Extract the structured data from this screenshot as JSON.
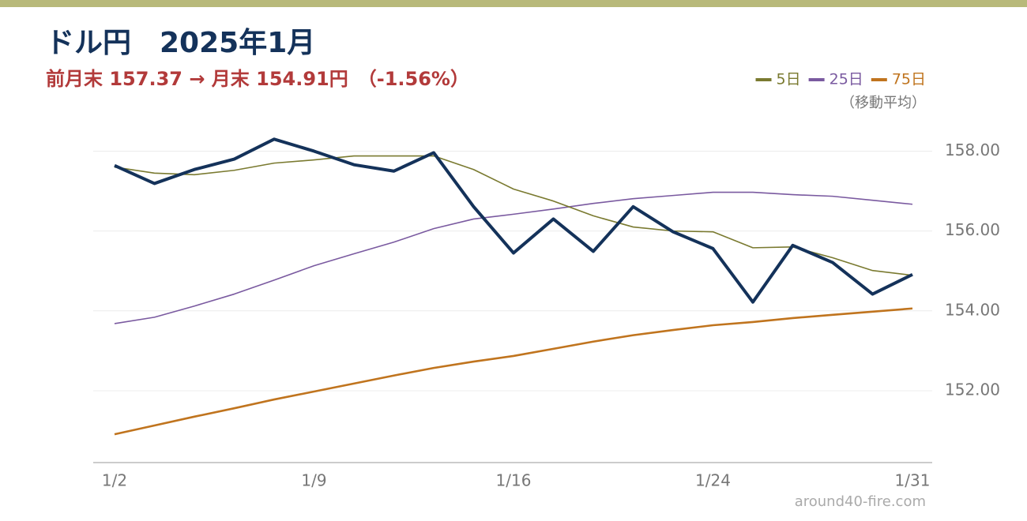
{
  "chart_data": {
    "type": "line",
    "title": "ドル円　2025年1月",
    "subtitle": "前月末 157.37 → 月末 154.91円　（-1.56%）",
    "legend_note": "（移動平均）",
    "source": "around40-fire.com",
    "categories": [
      "1/2",
      null,
      null,
      null,
      null,
      "1/9",
      null,
      null,
      null,
      null,
      "1/16",
      null,
      null,
      null,
      null,
      "1/24",
      null,
      null,
      null,
      null,
      "1/31"
    ],
    "series": [
      {
        "color": "#14325a",
        "values": [
          157.64,
          157.19,
          157.54,
          157.8,
          158.3,
          158.0,
          157.66,
          157.5,
          157.96,
          156.61,
          155.45,
          156.3,
          155.49,
          156.61,
          155.98,
          155.56,
          154.22,
          155.64,
          155.21,
          154.42,
          154.91
        ]
      },
      {
        "name": "5日",
        "color": "#7a7a30",
        "values": [
          157.6,
          157.45,
          157.41,
          157.52,
          157.7,
          157.78,
          157.88,
          157.88,
          157.88,
          157.54,
          157.05,
          156.75,
          156.38,
          156.1,
          156.0,
          155.98,
          155.58,
          155.6,
          155.33,
          155.01,
          154.89
        ]
      },
      {
        "name": "25日",
        "color": "#7a5aa0",
        "values": [
          153.68,
          153.84,
          154.12,
          154.42,
          154.77,
          155.13,
          155.43,
          155.72,
          156.06,
          156.3,
          156.42,
          156.55,
          156.69,
          156.81,
          156.89,
          156.97,
          156.97,
          156.91,
          156.87,
          156.77,
          156.67
        ]
      },
      {
        "name": "75日",
        "color": "#c0741e",
        "values": [
          150.91,
          151.13,
          151.35,
          151.56,
          151.78,
          151.98,
          152.18,
          152.38,
          152.57,
          152.73,
          152.87,
          153.05,
          153.23,
          153.39,
          153.52,
          153.64,
          153.72,
          153.82,
          153.9,
          153.98,
          154.06
        ]
      }
    ],
    "ylim": [
      150.2,
      158.8
    ],
    "yticks": [
      {
        "value": 152,
        "label": "152.00"
      },
      {
        "value": 154,
        "label": "154.00"
      },
      {
        "value": 156,
        "label": "156.00"
      },
      {
        "value": 158,
        "label": "158.00"
      }
    ],
    "grid": true
  }
}
